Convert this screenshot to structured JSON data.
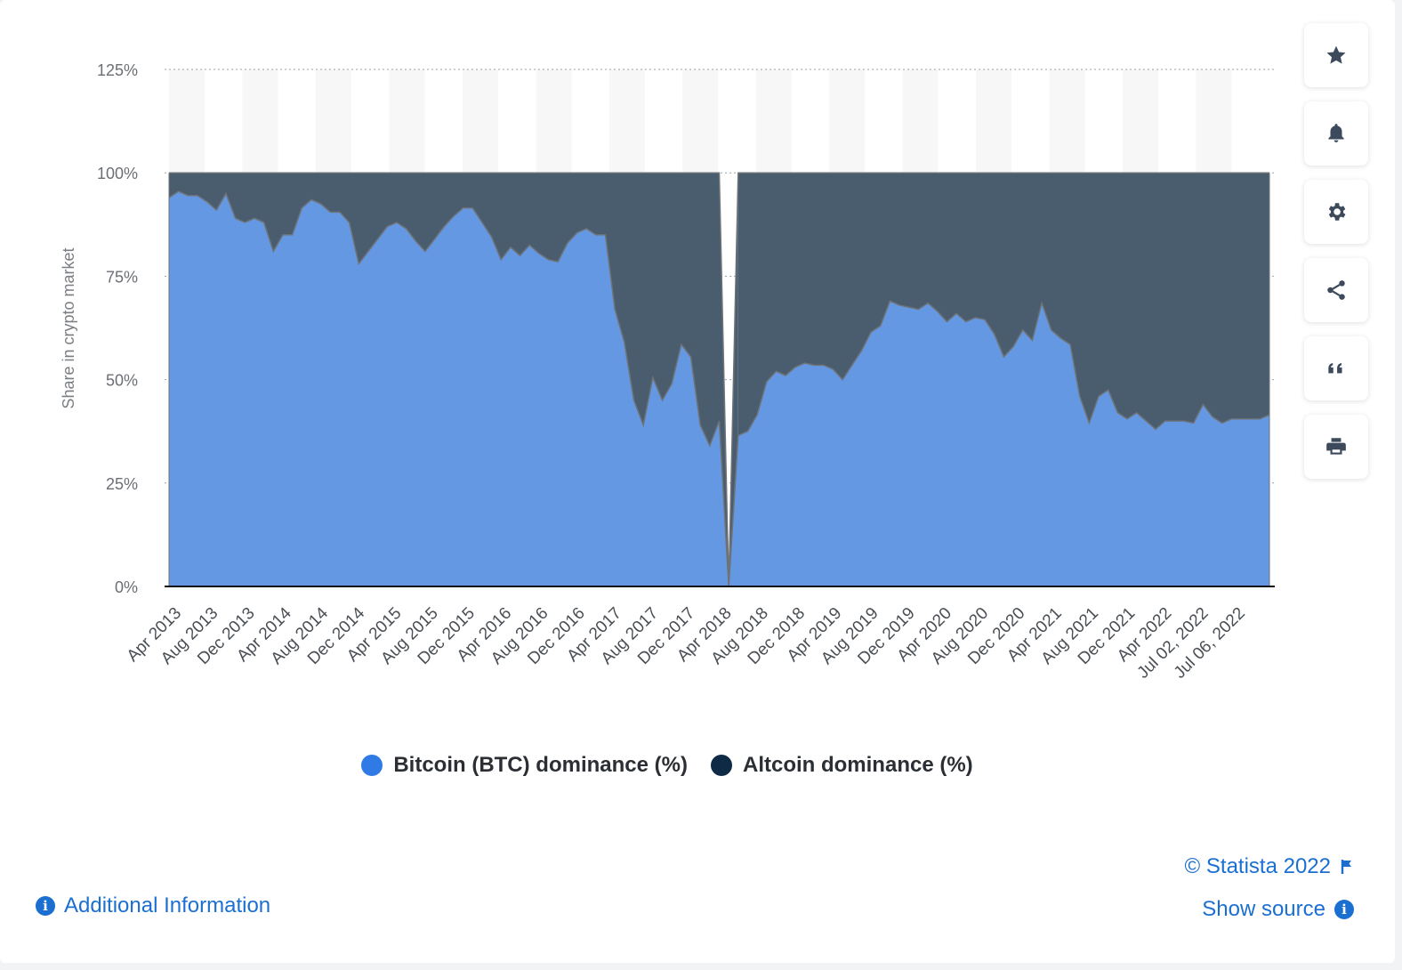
{
  "chart_data": {
    "type": "area",
    "stacked": true,
    "ylabel": "Share in crypto market",
    "ylim": [
      0,
      125
    ],
    "yticks": [
      "0%",
      "25%",
      "50%",
      "75%",
      "100%",
      "125%"
    ],
    "x_tick_labels": [
      "Apr 2013",
      "Aug 2013",
      "Dec 2013",
      "Apr 2014",
      "Aug 2014",
      "Dec 2014",
      "Apr 2015",
      "Aug 2015",
      "Dec 2015",
      "Apr 2016",
      "Aug 2016",
      "Dec 2016",
      "Apr 2017",
      "Aug 2017",
      "Dec 2017",
      "Apr 2018",
      "Aug 2018",
      "Dec 2018",
      "Apr 2019",
      "Aug 2019",
      "Dec 2019",
      "Apr 2020",
      "Aug 2020",
      "Dec 2020",
      "Apr 2021",
      "Aug 2021",
      "Dec 2021",
      "Apr 2022",
      "Jul 02, 2022",
      "Jul 06, 2022"
    ],
    "grid": true,
    "legend_position": "bottom",
    "series": [
      {
        "name": "Bitcoin (BTC) dominance (%)",
        "color": "#6598e3",
        "values": [
          94,
          95.5,
          94.5,
          94.5,
          93,
          91,
          95,
          89,
          88,
          89,
          88,
          81,
          85,
          85,
          91.5,
          93.5,
          92.5,
          90.5,
          90.5,
          88,
          78,
          81,
          84,
          87,
          88,
          86.5,
          83.5,
          81,
          84,
          87,
          89.5,
          91.5,
          91.5,
          88,
          84.5,
          79,
          82,
          80,
          82.5,
          80.5,
          79,
          78.5,
          83,
          85.5,
          86.5,
          85,
          85,
          67,
          59,
          45,
          39,
          50.5,
          45,
          49,
          58.5,
          55.5,
          39,
          34,
          40,
          0,
          36.5,
          37.5,
          41.5,
          49.5,
          52,
          51,
          53,
          54,
          53.5,
          53.5,
          52.5,
          50,
          53.5,
          57,
          61.5,
          63,
          69,
          68,
          67.5,
          67,
          68.5,
          66.5,
          64,
          66,
          64,
          65,
          64.5,
          61,
          55.5,
          58,
          62,
          59.5,
          68.5,
          62,
          60,
          58.5,
          46,
          39.5,
          46,
          47.5,
          42,
          40.5,
          42,
          40,
          38,
          40,
          40,
          40,
          39.5,
          44,
          41,
          39.5,
          40.5,
          40.5,
          40.5,
          40.5,
          41.5
        ]
      },
      {
        "name": "Altcoin dominance (%)",
        "color": "#4a5d6f",
        "legend_color": "#0f2a45",
        "fills_to": 100,
        "gap_after_index": 58,
        "gap_resume_index": 60
      }
    ]
  },
  "footer": {
    "additional_info": "Additional Information",
    "copyright": "© Statista 2022",
    "show_source": "Show source"
  },
  "toolbar": {
    "icons": [
      "star-icon",
      "bell-icon",
      "gear-icon",
      "share-icon",
      "quote-icon",
      "print-icon"
    ]
  }
}
